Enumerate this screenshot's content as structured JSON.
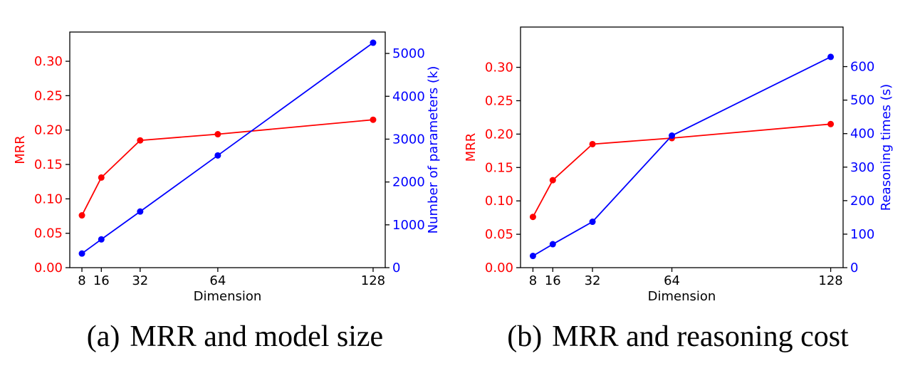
{
  "colors": {
    "mrr": "#ff0000",
    "secondary": "#0000ff",
    "axis": "#000000"
  },
  "chart_data": [
    {
      "type": "line",
      "caption_letter": "(a)",
      "caption_text": "MRR and model size",
      "xlabel": "Dimension",
      "x": [
        8,
        16,
        32,
        64,
        128
      ],
      "x_tick_labels": [
        "8",
        "16",
        "32",
        "64",
        "128"
      ],
      "xlim": [
        3,
        133
      ],
      "y_left": {
        "label": "MRR",
        "ticks": [
          "0.00",
          "0.05",
          "0.10",
          "0.15",
          "0.20",
          "0.25",
          "0.30"
        ],
        "lim": [
          0,
          0.3425
        ],
        "series": {
          "name": "MRR",
          "values": [
            0.076,
            0.131,
            0.185,
            0.194,
            0.215
          ]
        }
      },
      "y_right": {
        "label": "Number of parameters (k)",
        "ticks": [
          "0",
          "1000",
          "2000",
          "3000",
          "4000",
          "5000"
        ],
        "lim": [
          0,
          5500
        ],
        "series": {
          "name": "Number of parameters (k)",
          "values": [
            330,
            660,
            1310,
            2620,
            5250
          ]
        }
      }
    },
    {
      "type": "line",
      "caption_letter": "(b)",
      "caption_text": "MRR and reasoning cost",
      "xlabel": "Dimension",
      "x": [
        8,
        16,
        32,
        64,
        128
      ],
      "x_tick_labels": [
        "8",
        "16",
        "32",
        "64",
        "128"
      ],
      "xlim": [
        3,
        133
      ],
      "y_left": {
        "label": "MRR",
        "ticks": [
          "0.00",
          "0.05",
          "0.10",
          "0.15",
          "0.20",
          "0.25",
          "0.30"
        ],
        "lim": [
          0,
          0.3603
        ],
        "series": {
          "name": "MRR",
          "values": [
            0.076,
            0.131,
            0.185,
            0.194,
            0.215
          ]
        }
      },
      "y_right": {
        "label": "Reasoning times (s)",
        "ticks": [
          "0",
          "100",
          "200",
          "300",
          "400",
          "500",
          "600"
        ],
        "lim": [
          0,
          718
        ],
        "series": {
          "name": "Reasoning times (s)",
          "values": [
            35,
            70,
            137,
            394,
            629
          ]
        }
      }
    }
  ]
}
